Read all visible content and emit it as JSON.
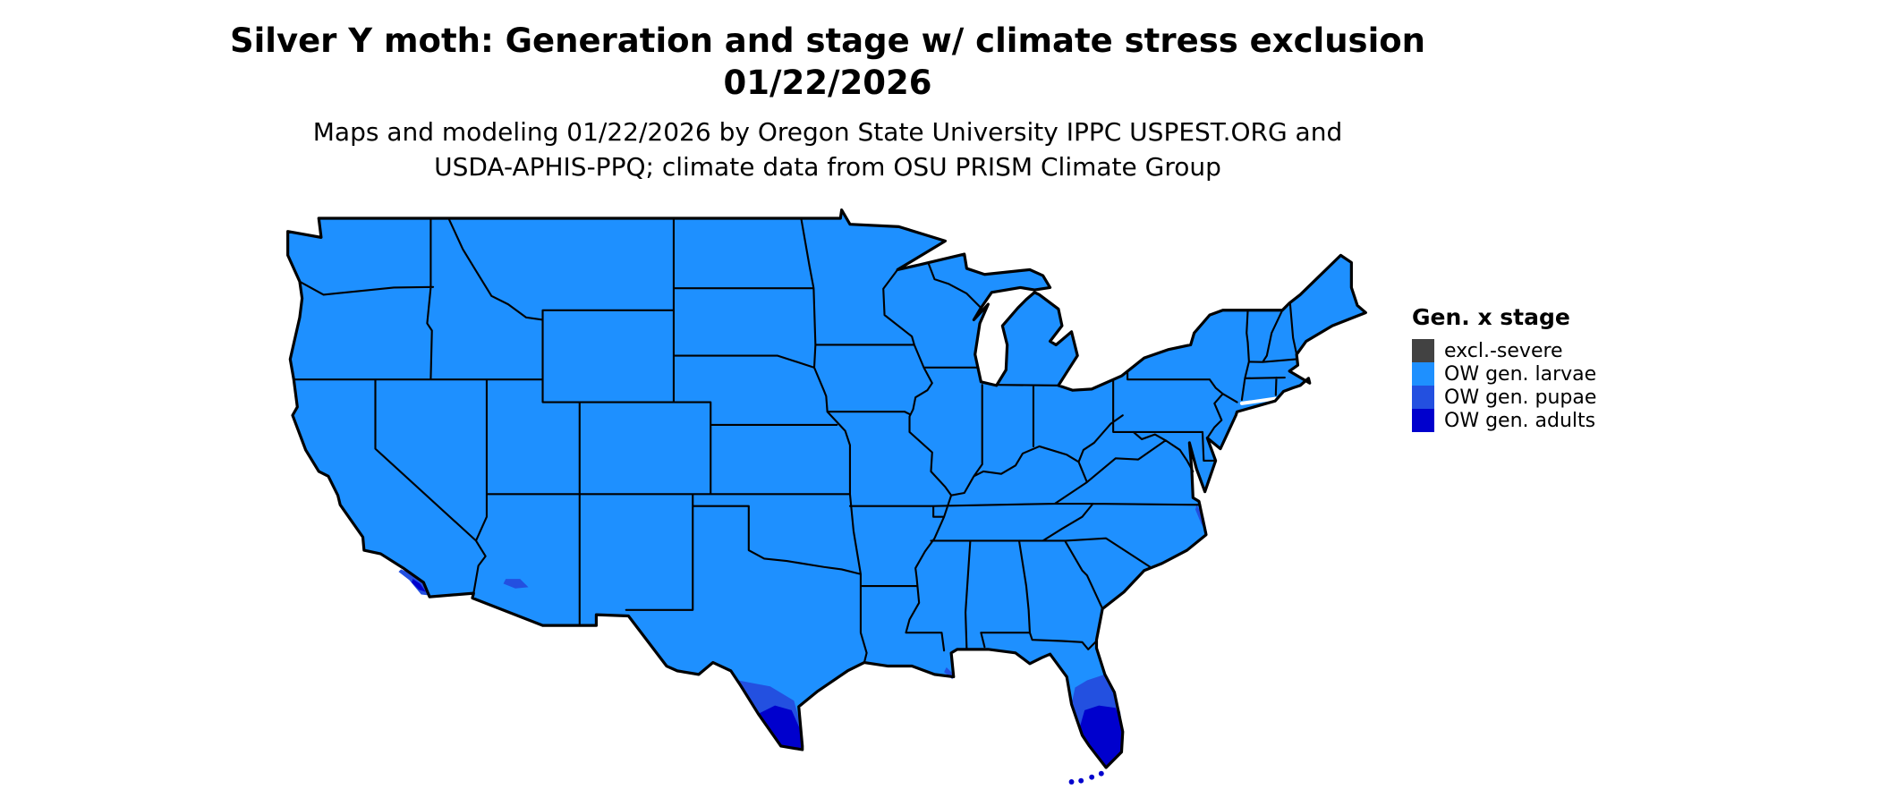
{
  "header": {
    "title_line1": "Silver Y moth: Generation and stage w/ climate stress exclusion",
    "title_line2": "01/22/2026",
    "subtitle_line1": "Maps and modeling 01/22/2026 by Oregon State University IPPC USPEST.ORG and",
    "subtitle_line2": "USDA-APHIS-PPQ; climate data from OSU PRISM Climate Group"
  },
  "legend": {
    "title": "Gen. x stage",
    "items": [
      {
        "key": "excl",
        "label": "excl.-severe",
        "color": "#424242"
      },
      {
        "key": "larvae",
        "label": "OW gen. larvae",
        "color": "#1E90FF"
      },
      {
        "key": "pupae",
        "label": "OW gen. pupae",
        "color": "#2350E0"
      },
      {
        "key": "adults",
        "label": "OW gen. adults",
        "color": "#0000CD"
      }
    ]
  },
  "map": {
    "border_color": "#000000",
    "water_color": "#FFFFFF",
    "base_stage_key": "larvae",
    "highlight_regions": [
      {
        "name": "south-texas-fringe",
        "stage": "pupae"
      },
      {
        "name": "south-texas",
        "stage": "adults"
      },
      {
        "name": "south-florida-fringe",
        "stage": "pupae"
      },
      {
        "name": "south-florida",
        "stage": "adults"
      },
      {
        "name": "southern-california-coast",
        "stage": "pupae"
      },
      {
        "name": "southwest-desert",
        "stage": "pupae"
      },
      {
        "name": "outer-banks",
        "stage": "pupae"
      },
      {
        "name": "louisiana-delta",
        "stage": "pupae"
      },
      {
        "name": "florida-keys",
        "stage": "adults"
      }
    ]
  }
}
